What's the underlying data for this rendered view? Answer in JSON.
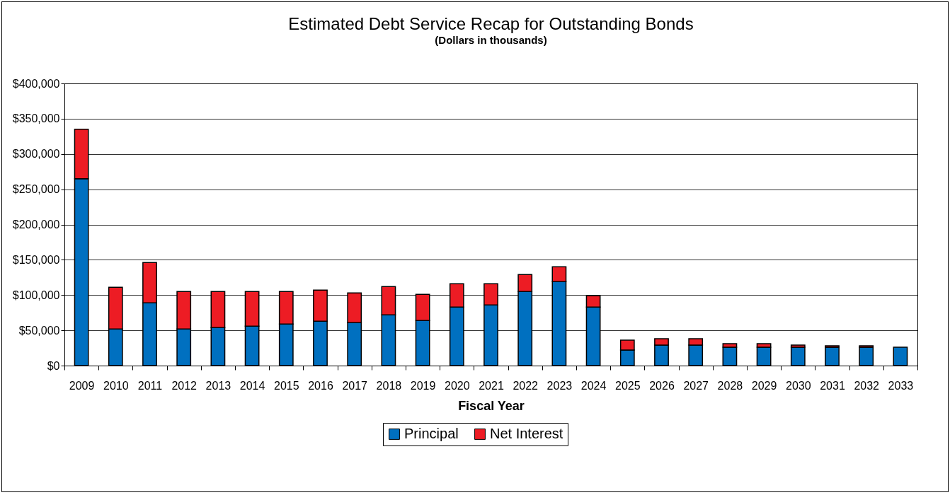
{
  "chart_data": {
    "type": "bar",
    "title": "Estimated Debt Service Recap for Outstanding Bonds",
    "subtitle": "(Dollars in thousands)",
    "xlabel": "Fiscal Year",
    "categories": [
      "2009",
      "2010",
      "2011",
      "2012",
      "2013",
      "2014",
      "2015",
      "2016",
      "2017",
      "2018",
      "2019",
      "2020",
      "2021",
      "2022",
      "2023",
      "2024",
      "2025",
      "2026",
      "2027",
      "2028",
      "2029",
      "2030",
      "2031",
      "2032",
      "2033"
    ],
    "stacked": true,
    "series": [
      {
        "name": "Principal",
        "color": "#0070c0",
        "values": [
          265000,
          52000,
          89000,
          52000,
          54000,
          56000,
          59000,
          63000,
          61000,
          72000,
          64000,
          83000,
          86000,
          105000,
          119000,
          83000,
          22000,
          29000,
          29000,
          26000,
          26000,
          26000,
          26000,
          26000,
          26000
        ]
      },
      {
        "name": "Net Interest",
        "color": "#ed1c24",
        "values": [
          70000,
          59000,
          57000,
          53000,
          51000,
          49000,
          46000,
          44000,
          42000,
          40000,
          37000,
          33000,
          30000,
          24000,
          21000,
          16000,
          14000,
          9000,
          9000,
          5000,
          5000,
          3000,
          2000,
          2000,
          null
        ]
      }
    ],
    "ylim": [
      0,
      400000
    ],
    "yticks": [
      {
        "value": 0,
        "label": "$0"
      },
      {
        "value": 50000,
        "label": "$50,000"
      },
      {
        "value": 100000,
        "label": "$100,000"
      },
      {
        "value": 150000,
        "label": "$150,000"
      },
      {
        "value": 200000,
        "label": "$200,000"
      },
      {
        "value": 250000,
        "label": "$250,000"
      },
      {
        "value": 300000,
        "label": "$300,000"
      },
      {
        "value": 350000,
        "label": "$350,000"
      },
      {
        "value": 400000,
        "label": "$400,000"
      }
    ],
    "grid": "y",
    "legend": "bottom"
  }
}
